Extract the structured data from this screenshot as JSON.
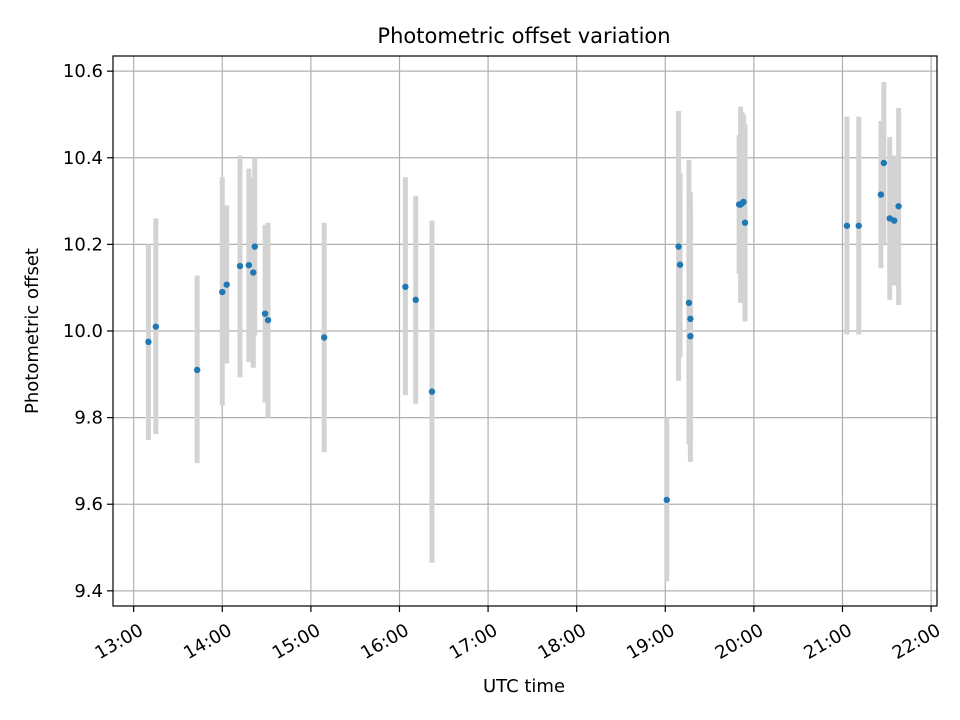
{
  "chart_data": {
    "type": "scatter",
    "title": "Photometric offset variation",
    "xlabel": "UTC time",
    "ylabel": "Photometric offset",
    "xlim": [
      "12:46",
      "22:04"
    ],
    "ylim": [
      9.365,
      10.635
    ],
    "x_ticks": [
      "13:00",
      "14:00",
      "15:00",
      "16:00",
      "17:00",
      "18:00",
      "19:00",
      "20:00",
      "21:00",
      "22:00"
    ],
    "y_ticks": [
      "9.4",
      "9.6",
      "9.8",
      "10.0",
      "10.2",
      "10.4",
      "10.6"
    ],
    "grid": true,
    "colors": {
      "point": "#1f77b4",
      "errorbar": "#d3d3d3",
      "grid": "#b0b0b0",
      "axis": "#000000"
    },
    "points": [
      {
        "x": "13:10",
        "y": 9.975,
        "err_low": 9.748,
        "err_high": 10.2
      },
      {
        "x": "13:15",
        "y": 10.01,
        "err_low": 9.762,
        "err_high": 10.26
      },
      {
        "x": "13:43",
        "y": 9.91,
        "err_low": 9.695,
        "err_high": 10.128
      },
      {
        "x": "14:00",
        "y": 10.09,
        "err_low": 9.828,
        "err_high": 10.355
      },
      {
        "x": "14:03",
        "y": 10.107,
        "err_low": 9.925,
        "err_high": 10.29
      },
      {
        "x": "14:12",
        "y": 10.15,
        "err_low": 9.893,
        "err_high": 10.405
      },
      {
        "x": "14:18",
        "y": 10.152,
        "err_low": 9.928,
        "err_high": 10.375
      },
      {
        "x": "14:21",
        "y": 10.135,
        "err_low": 9.915,
        "err_high": 10.355
      },
      {
        "x": "14:22",
        "y": 10.195,
        "err_low": 9.99,
        "err_high": 10.4
      },
      {
        "x": "14:29",
        "y": 10.04,
        "err_low": 9.835,
        "err_high": 10.245
      },
      {
        "x": "14:31",
        "y": 10.025,
        "err_low": 9.8,
        "err_high": 10.25
      },
      {
        "x": "15:09",
        "y": 9.985,
        "err_low": 9.72,
        "err_high": 10.25
      },
      {
        "x": "16:04",
        "y": 10.102,
        "err_low": 9.852,
        "err_high": 10.355
      },
      {
        "x": "16:11",
        "y": 10.072,
        "err_low": 9.832,
        "err_high": 10.312
      },
      {
        "x": "16:22",
        "y": 9.86,
        "err_low": 9.465,
        "err_high": 10.255
      },
      {
        "x": "19:01",
        "y": 9.61,
        "err_low": 9.422,
        "err_high": 9.8
      },
      {
        "x": "19:09",
        "y": 10.195,
        "err_low": 9.885,
        "err_high": 10.508
      },
      {
        "x": "19:10",
        "y": 10.153,
        "err_low": 9.94,
        "err_high": 10.365
      },
      {
        "x": "19:16",
        "y": 10.065,
        "err_low": 9.738,
        "err_high": 10.395
      },
      {
        "x": "19:17",
        "y": 10.028,
        "err_low": 9.738,
        "err_high": 10.32
      },
      {
        "x": "19:17",
        "y": 9.988,
        "err_low": 9.698,
        "err_high": 10.28
      },
      {
        "x": "19:50",
        "y": 10.292,
        "err_low": 10.132,
        "err_high": 10.452
      },
      {
        "x": "19:51",
        "y": 10.292,
        "err_low": 10.065,
        "err_high": 10.518
      },
      {
        "x": "19:52",
        "y": 10.295,
        "err_low": 10.085,
        "err_high": 10.505
      },
      {
        "x": "19:53",
        "y": 10.298,
        "err_low": 10.095,
        "err_high": 10.5
      },
      {
        "x": "19:54",
        "y": 10.25,
        "err_low": 10.022,
        "err_high": 10.478
      },
      {
        "x": "21:03",
        "y": 10.243,
        "err_low": 9.992,
        "err_high": 10.495
      },
      {
        "x": "21:11",
        "y": 10.243,
        "err_low": 9.992,
        "err_high": 10.495
      },
      {
        "x": "21:26",
        "y": 10.315,
        "err_low": 10.145,
        "err_high": 10.485
      },
      {
        "x": "21:28",
        "y": 10.388,
        "err_low": 10.2,
        "err_high": 10.575
      },
      {
        "x": "21:32",
        "y": 10.26,
        "err_low": 10.072,
        "err_high": 10.448
      },
      {
        "x": "21:35",
        "y": 10.255,
        "err_low": 10.105,
        "err_high": 10.405
      },
      {
        "x": "21:38",
        "y": 10.288,
        "err_low": 10.06,
        "err_high": 10.515
      }
    ]
  }
}
